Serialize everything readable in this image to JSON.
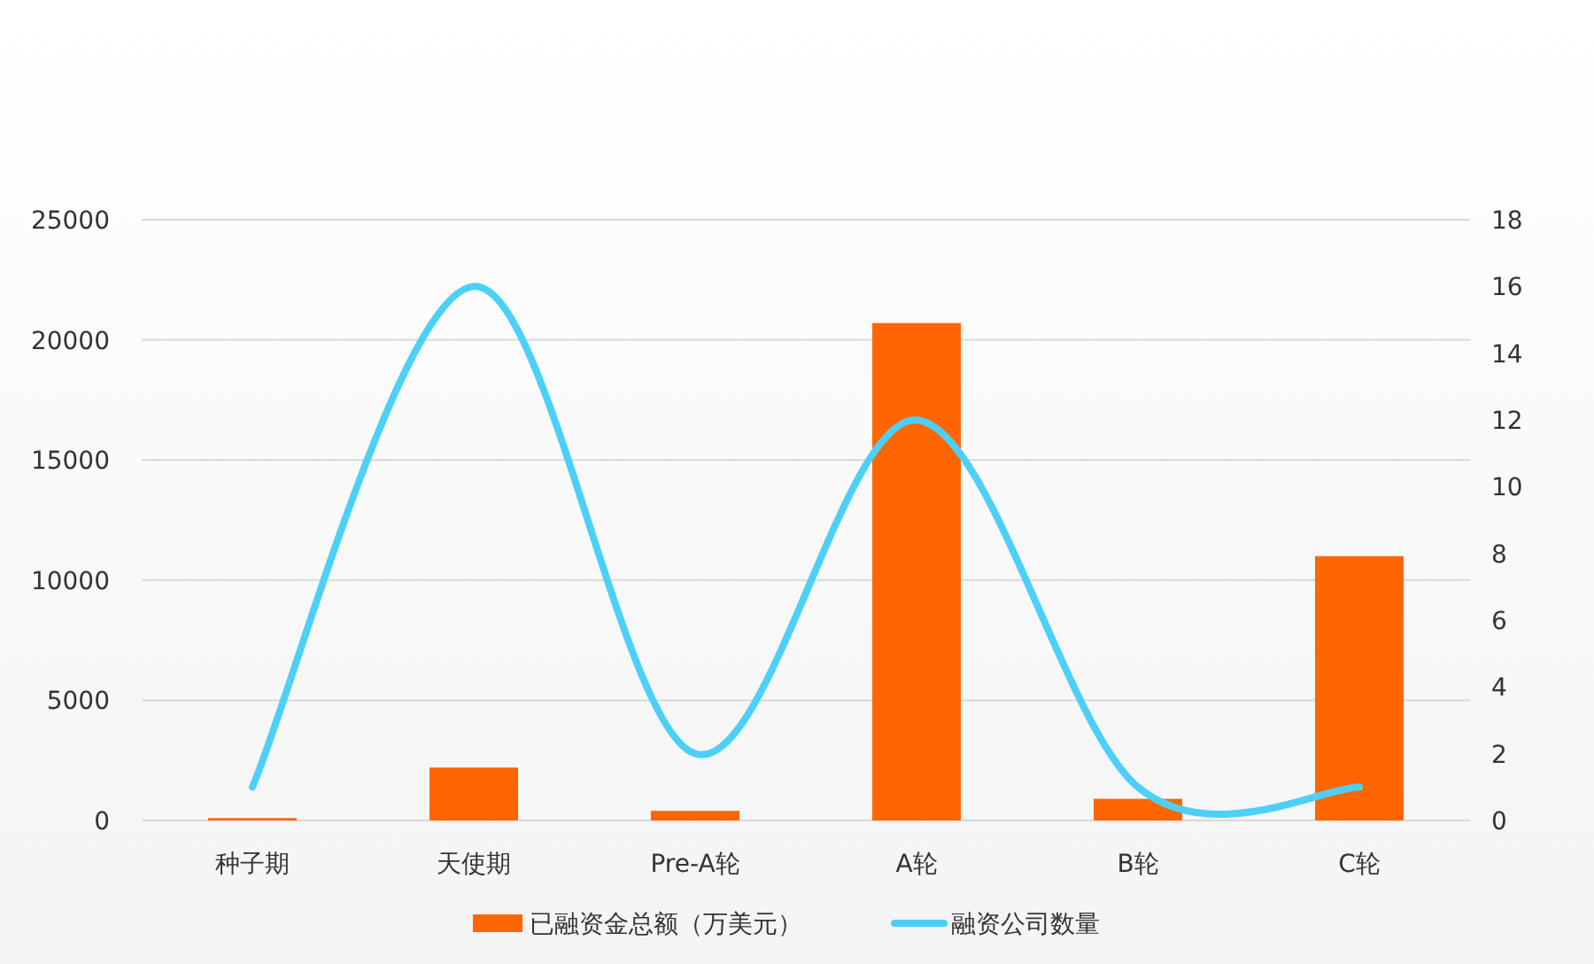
{
  "chart_data": {
    "type": "bar",
    "categories": [
      "种子期",
      "天使期",
      "Pre-A轮",
      "A轮",
      "B轮",
      "C轮"
    ],
    "series": [
      {
        "name": "已融资金总额（万美元）",
        "color": "#ff6600",
        "values": [
          100,
          2200,
          400,
          20700,
          900,
          11000
        ]
      },
      {
        "name": "融资公司数量",
        "type": "line",
        "axis": "y2",
        "color": "#4dd0f7",
        "values": [
          1,
          16,
          2,
          12,
          1,
          1
        ]
      }
    ],
    "ylim": [
      0,
      25000
    ],
    "yticks": [
      0,
      5000,
      10000,
      15000,
      20000,
      25000
    ],
    "y2lim": [
      0,
      18
    ],
    "y2ticks": [
      0,
      2,
      4,
      6,
      8,
      10,
      12,
      14,
      16,
      18
    ],
    "grid": "y",
    "legend": "bottom"
  }
}
